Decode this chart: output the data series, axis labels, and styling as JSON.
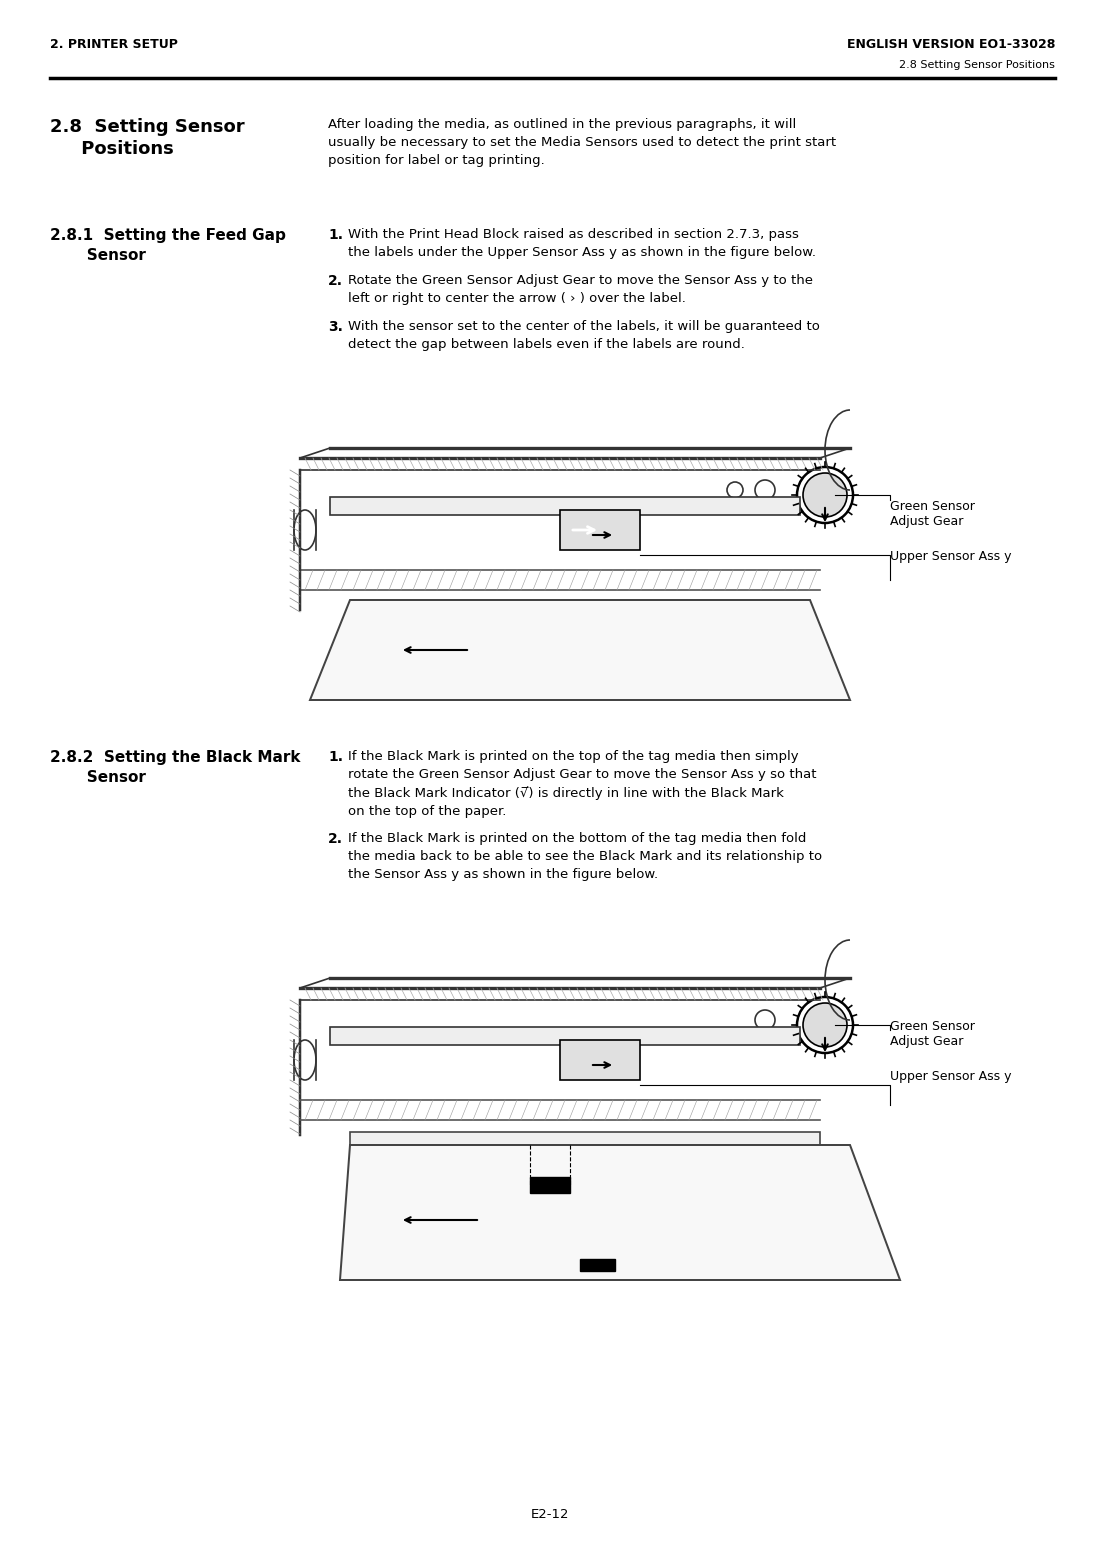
{
  "page_bg": "#ffffff",
  "header_left": "2. PRINTER SETUP",
  "header_right": "ENGLISH VERSION EO1-33028",
  "header_sub_right": "2.8 Setting Sensor Positions",
  "footer": "E2-12",
  "section_title": "2.8  Setting Sensor\n     Positions",
  "section_title_bold": true,
  "section_body": "After loading the media, as outlined in the previous paragraphs, it will\nusually be necessary to set the Media Sensors used to detect the print start\nposition for label or tag printing.",
  "sub1_title": "2.8.1  Setting the Feed Gap\n       Sensor",
  "sub1_items": [
    "With the Print Head Block raised as described in section 2.7.3, pass\nthe labels under the Upper Sensor Ass y as shown in the figure below.",
    "Rotate the Green Sensor Adjust Gear to move the Sensor Ass y to the\nleft or right to center the arrow ( › ) over the label.",
    "With the sensor set to the center of the labels, it will be guaranteed to\ndetect the gap between labels even if the labels are round."
  ],
  "diagram1_label1": "Green Sensor\nAdjust Gear",
  "diagram1_label2": "Upper Sensor Ass y",
  "sub2_title": "2.8.2  Setting the Black Mark\n       Sensor",
  "sub2_items": [
    "If the Black Mark is printed on the top of the tag media then simply\nrotate the Green Sensor Adjust Gear to move the Sensor Ass y so that\nthe Black Mark Indicator (√̅) is directly in line with the Black Mark\non the top of the paper.",
    "If the Black Mark is printed on the bottom of the tag media then fold\nthe media back to be able to see the Black Mark and its relationship to\nthe Sensor Ass y as shown in the figure below."
  ],
  "diagram2_label1": "Green Sensor\nAdjust Gear",
  "diagram2_label2": "Upper Sensor Ass y",
  "text_color": "#000000",
  "line_color": "#000000",
  "heading_font_size": 13,
  "subheading_font_size": 11,
  "body_font_size": 9.5,
  "header_font_size": 9
}
